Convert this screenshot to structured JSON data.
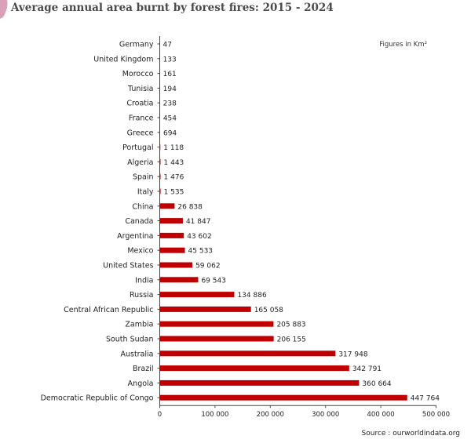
{
  "title": "Average annual area burnt by forest fires: 2015 - 2024",
  "unit_note": "Figures in Km²",
  "source": "Source : ourworldindata.org",
  "colors": {
    "bar": "#c00000",
    "axis": "#444444",
    "text": "#222222",
    "accent": "#d9a0b8"
  },
  "chart_data": {
    "type": "bar",
    "orientation": "horizontal",
    "categories": [
      "Germany",
      "United Kingdom",
      "Morocco",
      "Tunisia",
      "Croatia",
      "France",
      "Greece",
      "Portugal",
      "Algeria",
      "Spain",
      "Italy",
      "China",
      "Canada",
      "Argentina",
      "Mexico",
      "United States",
      "India",
      "Russia",
      "Central African Republic",
      "Zambia",
      "South Sudan",
      "Australia",
      "Brazil",
      "Angola",
      "Democratic Republic of Congo"
    ],
    "values": [
      47,
      133,
      161,
      194,
      238,
      454,
      694,
      1118,
      1443,
      1476,
      1535,
      26838,
      41847,
      43602,
      45533,
      59062,
      69543,
      134886,
      165058,
      205883,
      206155,
      317948,
      342791,
      360664,
      447764
    ],
    "value_labels": [
      "47",
      "133",
      "161",
      "194",
      "238",
      "454",
      "694",
      "1 118",
      "1 443",
      "1 476",
      "1 535",
      "26 838",
      "41 847",
      "43 602",
      "45 533",
      "59 062",
      "69 543",
      "134 886",
      "165 058",
      "205 883",
      "206 155",
      "317 948",
      "342 791",
      "360 664",
      "447 764"
    ],
    "xlim": [
      0,
      500000
    ],
    "xticks": [
      0,
      100000,
      200000,
      300000,
      400000,
      500000
    ],
    "xtick_labels": [
      "0",
      "100 000",
      "200 000",
      "300 000",
      "400 000",
      "500 000"
    ],
    "xlabel": "",
    "ylabel": "",
    "grid": false
  }
}
